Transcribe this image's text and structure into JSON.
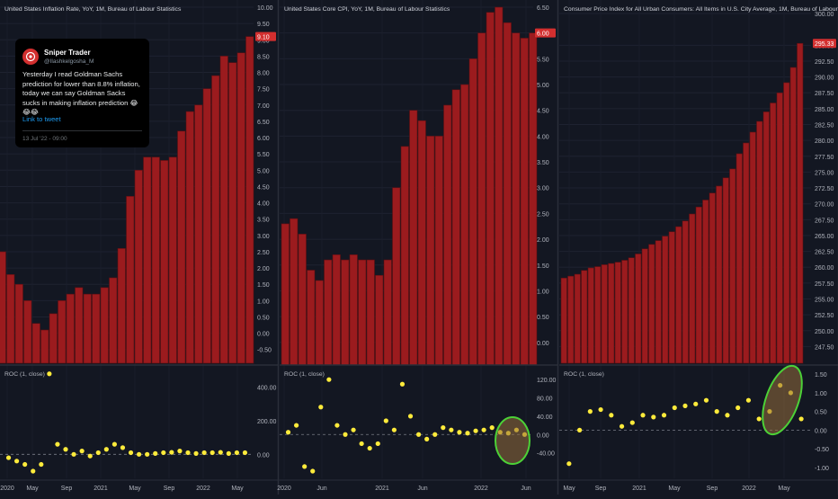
{
  "tweet": {
    "name": "Sniper Trader",
    "handle": "@Ilashkelgosha_M",
    "text": "Yesterday I read  Goldman Sachs prediction for lower than 8.8% inflation, today we can say Goldman Sacks sucks in making inflation prediction 😂😂😂",
    "link": "Link to tweet",
    "date": "13 Jul '22 - 09:00"
  },
  "chart_data": [
    {
      "type": "bar",
      "title": "United States Inflation Rate, YoY, 1M, Bureau of Labour Statistics",
      "last_value_label": "9.10",
      "ylim": [
        -0.7,
        10.0
      ],
      "y_ticks": [
        "10.00",
        "9.50",
        "9.00",
        "8.50",
        "8.00",
        "7.50",
        "7.00",
        "6.50",
        "6.00",
        "5.50",
        "5.00",
        "4.50",
        "4.00",
        "3.50",
        "3.00",
        "2.50",
        "2.00",
        "1.50",
        "1.00",
        "0.50",
        "0.00",
        "-0.50"
      ],
      "values": [
        2.5,
        1.8,
        1.5,
        1.0,
        0.3,
        0.1,
        0.6,
        1.0,
        1.2,
        1.4,
        1.2,
        1.2,
        1.4,
        1.7,
        2.6,
        4.2,
        5.0,
        5.4,
        5.4,
        5.3,
        5.4,
        6.2,
        6.8,
        7.0,
        7.5,
        7.9,
        8.5,
        8.3,
        8.6,
        9.1
      ],
      "x_ticks": [
        "2020",
        "May",
        "Sep",
        "2021",
        "May",
        "Sep",
        "2022",
        "May"
      ],
      "roc": {
        "title": "ROC (1, close)",
        "ylim": [
          -100,
          500
        ],
        "y_ticks": [
          "400.00",
          "200.00",
          "0.00"
        ],
        "values": [
          -20,
          -40,
          -60,
          -100,
          -60,
          480,
          60,
          30,
          0,
          20,
          -10,
          10,
          30,
          60,
          40,
          10,
          0,
          0,
          5,
          10,
          12,
          20,
          10,
          5,
          10,
          10,
          12,
          5,
          10,
          10
        ]
      }
    },
    {
      "type": "bar",
      "title": "United States Core CPI, YoY, 1M, Bureau of Labour Statistics",
      "last_value_label": "6.00",
      "ylim": [
        -0.3,
        6.5
      ],
      "y_ticks": [
        "6.50",
        "6.00",
        "5.50",
        "5.00",
        "4.50",
        "4.00",
        "3.50",
        "3.00",
        "2.50",
        "2.00",
        "1.50",
        "1.00",
        "0.50",
        "0.00"
      ],
      "values": [
        2.3,
        2.4,
        2.1,
        1.4,
        1.2,
        1.6,
        1.7,
        1.6,
        1.7,
        1.6,
        1.6,
        1.3,
        1.6,
        3.0,
        3.8,
        4.5,
        4.3,
        4.0,
        4.0,
        4.6,
        4.9,
        5.0,
        5.5,
        6.0,
        6.4,
        6.5,
        6.2,
        6.0,
        5.9,
        6.0
      ],
      "x_ticks": [
        "2020",
        "Jun",
        "2021",
        "Jun",
        "2022",
        "Jun"
      ],
      "roc": {
        "title": "ROC (1, close)",
        "ylim": [
          -80,
          140
        ],
        "y_ticks": [
          "120.00",
          "80.00",
          "40.00",
          "0.00",
          "-40.00"
        ],
        "values": [
          5,
          20,
          -70,
          -80,
          60,
          120,
          20,
          0,
          10,
          -20,
          -30,
          -20,
          30,
          10,
          110,
          40,
          0,
          -10,
          0,
          15,
          10,
          5,
          3,
          8,
          10,
          15,
          5,
          3,
          10,
          0
        ]
      }
    },
    {
      "type": "bar",
      "title": "Consumer Price Index for All Urban Consumers: All Items in U.S. City Average, 1M, Bureau of Labour Statistics",
      "last_value_label": "295.33",
      "ylim": [
        246.0,
        301.0
      ],
      "y_ticks": [
        "300.00",
        "295.00",
        "292.50",
        "290.00",
        "287.50",
        "285.00",
        "282.50",
        "280.00",
        "277.50",
        "275.00",
        "272.50",
        "270.00",
        "267.50",
        "265.00",
        "262.50",
        "260.00",
        "257.50",
        "255.00",
        "252.50",
        "250.00",
        "247.50"
      ],
      "values": [
        258.3,
        258.6,
        258.9,
        259.5,
        259.9,
        260.1,
        260.4,
        260.6,
        260.8,
        261.1,
        261.5,
        262.1,
        262.9,
        263.6,
        264.2,
        264.9,
        265.6,
        266.4,
        267.3,
        268.4,
        269.5,
        270.6,
        271.7,
        272.8,
        274.1,
        275.5,
        277.9,
        279.6,
        281.3,
        283.0,
        284.5,
        285.9,
        287.5,
        289.1,
        291.5,
        295.3
      ],
      "x_ticks": [
        "May",
        "Sep",
        "2021",
        "May",
        "Sep",
        "2022",
        "May"
      ],
      "roc": {
        "title": "ROC (1, close)",
        "ylim": [
          -1.1,
          1.6
        ],
        "y_ticks": [
          "1.50",
          "1.00",
          "0.50",
          "0.00",
          "-0.50",
          "-1.00"
        ],
        "values": [
          -0.9,
          0.0,
          0.5,
          0.55,
          0.4,
          0.1,
          0.2,
          0.4,
          0.35,
          0.4,
          0.6,
          0.65,
          0.7,
          0.8,
          0.5,
          0.4,
          0.6,
          0.8,
          0.3,
          0.5,
          1.2,
          1.0,
          0.3
        ]
      }
    }
  ]
}
